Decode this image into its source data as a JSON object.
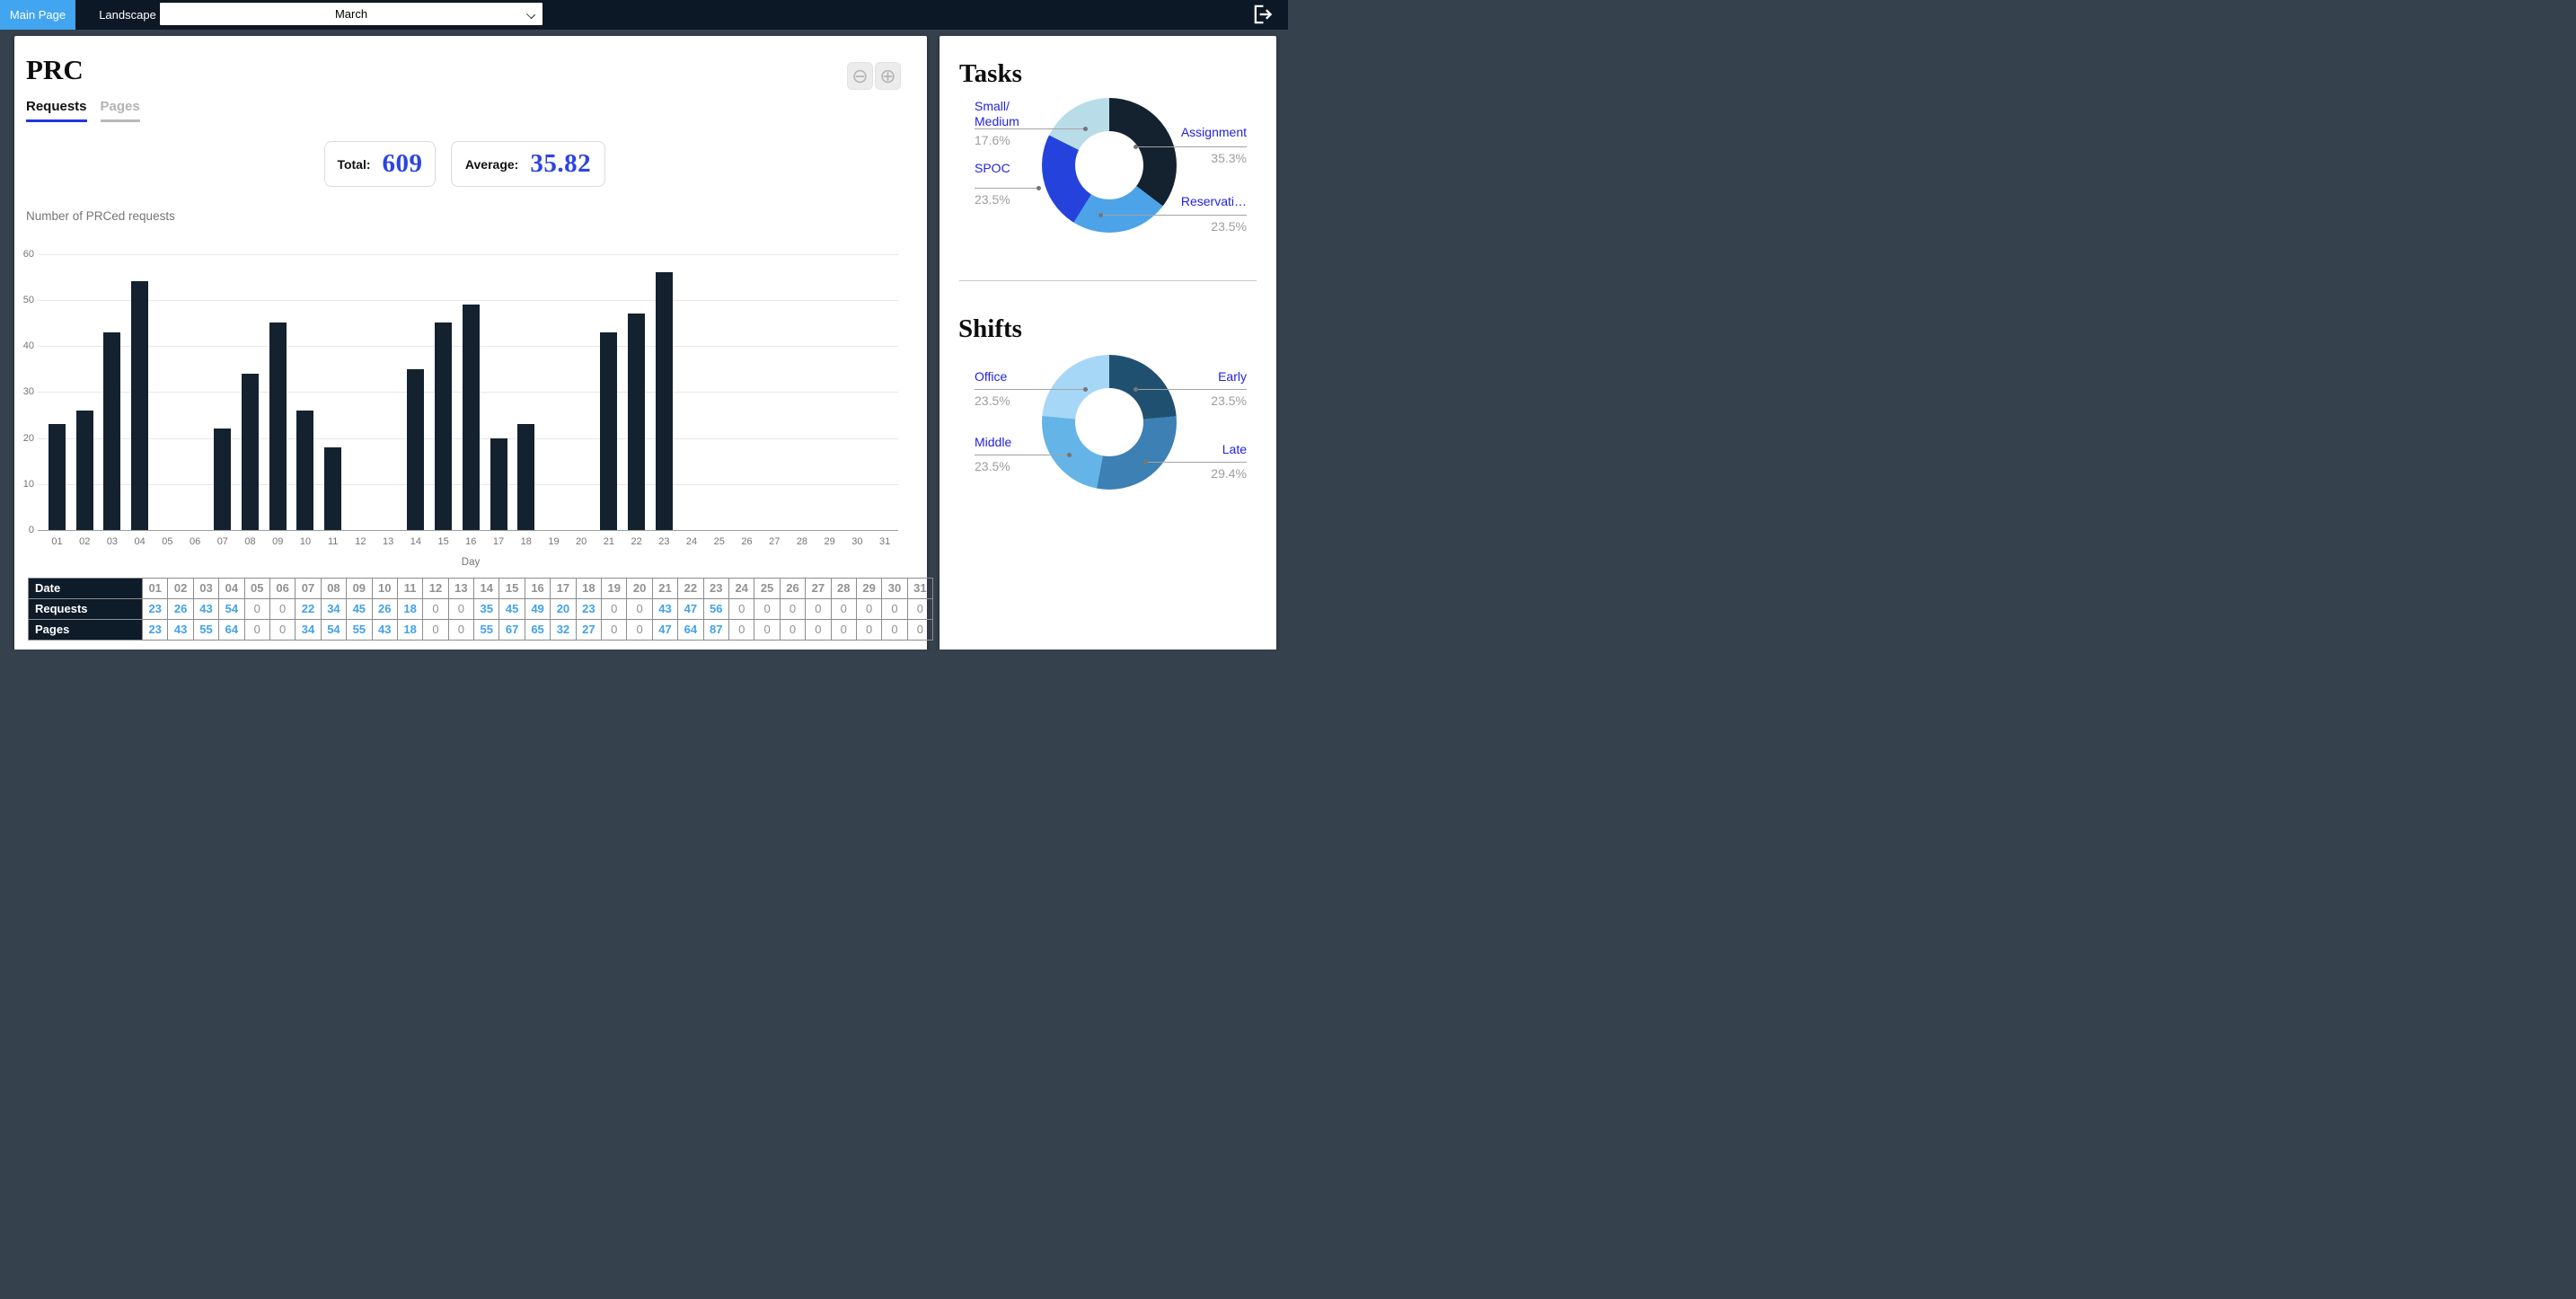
{
  "navbar": {
    "tabs": [
      {
        "label": "Main Page",
        "active": true
      },
      {
        "label": "Landscape",
        "active": false
      }
    ],
    "month_select": {
      "value": "March"
    }
  },
  "main": {
    "title": "PRC",
    "tabs": [
      {
        "label": "Requests",
        "active": true
      },
      {
        "label": "Pages",
        "active": false
      }
    ],
    "zoom_out_label": "⊖",
    "zoom_in_label": "⊕",
    "stats": [
      {
        "label": "Total:",
        "value": "609"
      },
      {
        "label": "Average:",
        "value": "35.82"
      }
    ],
    "table": {
      "rows": [
        {
          "header": "Date",
          "values": [
            "01",
            "02",
            "03",
            "04",
            "05",
            "06",
            "07",
            "08",
            "09",
            "10",
            "11",
            "12",
            "13",
            "14",
            "15",
            "16",
            "17",
            "18",
            "19",
            "20",
            "21",
            "22",
            "23",
            "24",
            "25",
            "26",
            "27",
            "28",
            "29",
            "30",
            "31"
          ]
        },
        {
          "header": "Requests",
          "values": [
            23,
            26,
            43,
            54,
            0,
            0,
            22,
            34,
            45,
            26,
            18,
            0,
            0,
            35,
            45,
            49,
            20,
            23,
            0,
            0,
            43,
            47,
            56,
            0,
            0,
            0,
            0,
            0,
            0,
            0,
            0
          ]
        },
        {
          "header": "Pages",
          "values": [
            23,
            43,
            55,
            64,
            0,
            0,
            34,
            54,
            55,
            43,
            18,
            0,
            0,
            55,
            67,
            65,
            32,
            27,
            0,
            0,
            47,
            64,
            87,
            0,
            0,
            0,
            0,
            0,
            0,
            0,
            0
          ]
        }
      ]
    }
  },
  "chart_data": [
    {
      "type": "bar",
      "title": "Number of PRCed requests",
      "xlabel": "Day",
      "ylabel": "",
      "ylim": [
        0,
        60
      ],
      "ytick_step": 10,
      "grid": true,
      "bar_color": "#14222f",
      "categories": [
        "01",
        "02",
        "03",
        "04",
        "05",
        "06",
        "07",
        "08",
        "09",
        "10",
        "11",
        "12",
        "13",
        "14",
        "15",
        "16",
        "17",
        "18",
        "19",
        "20",
        "21",
        "22",
        "23",
        "24",
        "25",
        "26",
        "27",
        "28",
        "29",
        "30",
        "31"
      ],
      "values": [
        23,
        26,
        43,
        54,
        0,
        0,
        22,
        34,
        45,
        26,
        18,
        0,
        0,
        35,
        45,
        49,
        20,
        23,
        0,
        0,
        43,
        47,
        56,
        0,
        0,
        0,
        0,
        0,
        0,
        0,
        0
      ]
    },
    {
      "type": "pie",
      "title": "Tasks",
      "legend_position": "labeled",
      "slices": [
        {
          "label": "Assignment",
          "pct_text": "35.3%",
          "value": 35.3,
          "color": "#14222f"
        },
        {
          "label": "Reservati…",
          "pct_text": "23.5%",
          "value": 23.5,
          "color": "#4da3e8"
        },
        {
          "label": "SPOC",
          "pct_text": "23.5%",
          "value": 23.5,
          "color": "#2543dc"
        },
        {
          "label": "Small/",
          "label2": "Medium",
          "pct_text": "17.6%",
          "value": 17.6,
          "color": "#b9dce9"
        }
      ]
    },
    {
      "type": "pie",
      "title": "Shifts",
      "legend_position": "labeled",
      "slices": [
        {
          "label": "Early",
          "pct_text": "23.5%",
          "value": 23.5,
          "color": "#20506f"
        },
        {
          "label": "Late",
          "pct_text": "29.4%",
          "value": 29.4,
          "color": "#3c80b4"
        },
        {
          "label": "Middle",
          "pct_text": "23.5%",
          "value": 23.5,
          "color": "#64b4e8"
        },
        {
          "label": "Office",
          "pct_text": "23.5%",
          "value": 23.5,
          "color": "#a7d7f7"
        }
      ]
    }
  ],
  "colors": {
    "navbar_bg": "#0c1826",
    "active_tab_bg": "#42a5ef",
    "body_bg": "#35414d",
    "stat_value_blue": "#2b45e0",
    "pie_label_blue": "#2323dd",
    "table_value_blue": "#42a1e8",
    "bar_navy": "#14222f"
  }
}
